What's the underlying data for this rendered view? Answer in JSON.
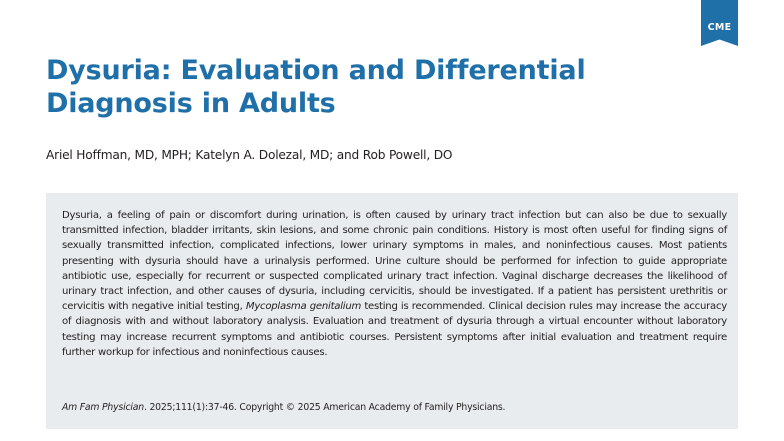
{
  "badge": {
    "label": "CME",
    "color": "#1f6fa8"
  },
  "article": {
    "title": "Dysuria: Evaluation and Differential Diagnosis in Adults",
    "authors": "Ariel Hoffman, MD, MPH; Katelyn A. Dolezal, MD; and Rob Powell, DO",
    "abstract": {
      "part1": "Dysuria, a feeling of pain or discomfort during urination, is often caused by urinary tract infection but can also be due to sexually transmitted infection, bladder irritants, skin lesions, and some chronic pain conditions. History is most often useful for finding signs of sexually transmitted infection, complicated infections, lower urinary symptoms in males, and noninfectious causes. Most patients presenting with dysuria should have a urinalysis performed. Urine culture should be performed for infection to guide appropriate antibiotic use, especially for recurrent or suspected complicated urinary tract infection. Vaginal discharge decreases the likelihood of urinary tract infection, and other causes of dysuria, including cervicitis, should be investigated. If a patient has persistent urethritis or cervicitis with negative initial testing, ",
      "organism": "Mycoplasma genitalium",
      "part2": " testing is recommended. Clinical decision rules may increase the accuracy of diagnosis with and without laboratory analysis. Evaluation and treatment of dysuria through a virtual encounter without laboratory testing may increase recurrent symptoms and antibiotic courses. Persistent symptoms after initial evaluation and treatment require further workup for infectious and noninfectious causes."
    },
    "citation": {
      "journal": "Am Fam Physician",
      "details": ". 2025;111(1):37-46. Copyright © 2025 American Academy of Family Physicians."
    }
  },
  "colors": {
    "title": "#1f6fa8",
    "abstract_background": "#e9ecef",
    "text": "#231f20"
  }
}
